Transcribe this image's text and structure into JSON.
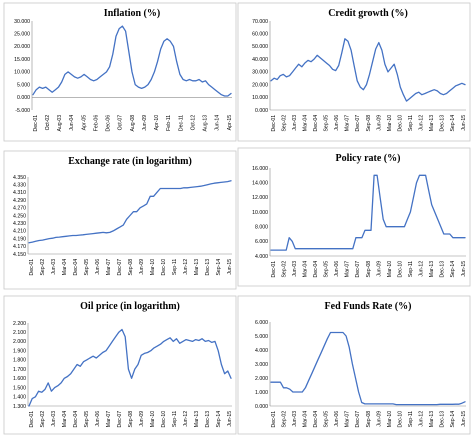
{
  "series_color": "#4472c4",
  "chart_data": [
    {
      "type": "line",
      "title": "Inflation (%)",
      "ylim": [
        -5,
        30
      ],
      "yticks": [
        "-5.000",
        "0.000",
        "5.000",
        "10.000",
        "15.000",
        "20.000",
        "25.000",
        "30.000"
      ],
      "xticks": [
        "Dec-01",
        "Oct-02",
        "Aug-03",
        "Jun-04",
        "Apr-05",
        "Feb-06",
        "Dec-06",
        "Oct-07",
        "Aug-08",
        "Jun-09",
        "Apr-10",
        "Feb-11",
        "Dec-11",
        "Oct-12",
        "Aug-13",
        "Jun-14",
        "Apr-15"
      ],
      "series": [
        {
          "values": [
            1,
            3,
            4,
            3.5,
            4,
            3,
            2,
            3,
            4,
            6,
            9,
            10,
            9,
            8,
            7.5,
            8,
            9,
            8,
            7,
            6.5,
            7,
            8,
            9,
            10,
            12,
            17,
            24,
            27,
            28,
            26,
            18,
            10,
            5,
            4,
            3.5,
            4,
            5,
            7,
            10,
            14,
            19,
            22,
            23,
            22,
            20,
            14,
            9,
            7,
            6.5,
            7,
            6.5,
            6.5,
            7,
            6,
            6.5,
            5,
            4,
            3,
            2,
            1,
            0.5,
            0.5,
            1.5
          ]
        }
      ]
    },
    {
      "type": "line",
      "title": "Credit growth (%)",
      "ylim": [
        0,
        70
      ],
      "yticks": [
        "0.000",
        "10.000",
        "20.000",
        "30.000",
        "40.000",
        "50.000",
        "60.000",
        "70.000"
      ],
      "xticks": [
        "Dec-01",
        "Sep-02",
        "Jun-03",
        "Mar-04",
        "Dec-04",
        "Sep-05",
        "Jun-06",
        "Mar-07",
        "Dec-07",
        "Sep-08",
        "Jun-09",
        "Mar-10",
        "Dec-10",
        "Sep-11",
        "Jun-12",
        "Mar-13",
        "Dec-13",
        "Sep-14",
        "Jun-15"
      ],
      "series": [
        {
          "values": [
            23,
            25,
            24,
            27,
            28,
            26,
            27,
            30,
            33,
            36,
            34,
            37,
            39,
            38,
            40,
            43,
            41,
            39,
            37,
            35,
            32,
            31,
            35,
            45,
            56,
            54,
            47,
            35,
            23,
            18,
            16,
            20,
            28,
            38,
            48,
            53,
            47,
            36,
            30,
            33,
            36,
            28,
            18,
            12,
            7,
            9,
            11,
            13,
            14,
            12,
            13,
            14,
            15,
            16,
            15,
            13,
            12,
            13,
            15,
            17,
            19,
            20,
            21,
            20
          ]
        }
      ]
    },
    {
      "type": "line",
      "title": "Exchange rate (in logarithm)",
      "ylim": [
        4.15,
        4.35
      ],
      "yticks": [
        "4.150",
        "4.170",
        "4.190",
        "4.210",
        "4.230",
        "4.250",
        "4.270",
        "4.290",
        "4.310",
        "4.330",
        "4.350"
      ],
      "xticks": [
        "Dec-01",
        "Sep-02",
        "Jun-03",
        "Mar-04",
        "Dec-04",
        "Sep-05",
        "Jun-06",
        "Mar-07",
        "Dec-07",
        "Sep-08",
        "Jun-09",
        "Mar-10",
        "Dec-10",
        "Sep-11",
        "Jun-12",
        "Mar-13",
        "Dec-13",
        "Sep-14",
        "Jun-15"
      ],
      "series": [
        {
          "values": [
            4.179,
            4.181,
            4.183,
            4.185,
            4.186,
            4.188,
            4.19,
            4.191,
            4.193,
            4.194,
            4.195,
            4.196,
            4.197,
            4.198,
            4.198,
            4.199,
            4.2,
            4.201,
            4.202,
            4.203,
            4.204,
            4.205,
            4.206,
            4.205,
            4.206,
            4.21,
            4.215,
            4.22,
            4.225,
            4.24,
            4.25,
            4.26,
            4.26,
            4.27,
            4.275,
            4.28,
            4.3,
            4.3,
            4.31,
            4.32,
            4.32,
            4.32,
            4.32,
            4.32,
            4.32,
            4.32,
            4.322,
            4.322,
            4.323,
            4.324,
            4.325,
            4.326,
            4.328,
            4.33,
            4.332,
            4.334,
            4.335,
            4.336,
            4.337,
            4.338,
            4.34
          ]
        }
      ]
    },
    {
      "type": "line",
      "title": "Policy rate (%)",
      "ylim": [
        4,
        16
      ],
      "yticks": [
        "4.000",
        "6.000",
        "8.000",
        "10.000",
        "12.000",
        "14.000",
        "16.000"
      ],
      "xticks": [
        "Dec-01",
        "Sep-02",
        "Jun-03",
        "Mar-04",
        "Dec-04",
        "Sep-05",
        "Jun-06",
        "Mar-07",
        "Dec-07",
        "Sep-08",
        "Jun-09",
        "Mar-10",
        "Dec-10",
        "Sep-11",
        "Jun-12",
        "Mar-13",
        "Dec-13",
        "Sep-14",
        "Jun-15"
      ],
      "series": [
        {
          "values": [
            4.8,
            4.8,
            4.8,
            4.8,
            4.8,
            4.8,
            6.5,
            6,
            5,
            5,
            5,
            5,
            5,
            5,
            5,
            5,
            5,
            5,
            5,
            5,
            5,
            5,
            5,
            5,
            5,
            5,
            5,
            5,
            6.5,
            6.5,
            6.5,
            7.5,
            7.5,
            7.5,
            15,
            15,
            12,
            9,
            8,
            8,
            8,
            8,
            8,
            8,
            8,
            9,
            10,
            12,
            14,
            15,
            15,
            15,
            13,
            11,
            10,
            9,
            8,
            7,
            7,
            7,
            6.5,
            6.5,
            6.5,
            6.5,
            6.5
          ]
        }
      ]
    },
    {
      "type": "line",
      "title": "Oil price (in logarithm)",
      "ylim": [
        1.3,
        2.2
      ],
      "yticks": [
        "1.300",
        "1.400",
        "1.500",
        "1.600",
        "1.700",
        "1.800",
        "1.900",
        "2.000",
        "2.100",
        "2.200"
      ],
      "xticks": [
        "Dec-01",
        "Sep-02",
        "Jun-03",
        "Mar-04",
        "Dec-04",
        "Sep-05",
        "Jun-06",
        "Mar-07",
        "Dec-07",
        "Sep-08",
        "Jun-09",
        "Mar-10",
        "Dec-10",
        "Sep-11",
        "Jun-12",
        "Mar-13",
        "Dec-13",
        "Sep-14",
        "Jun-15"
      ],
      "series": [
        {
          "values": [
            1.3,
            1.38,
            1.4,
            1.46,
            1.45,
            1.48,
            1.55,
            1.46,
            1.5,
            1.52,
            1.55,
            1.6,
            1.62,
            1.65,
            1.7,
            1.75,
            1.73,
            1.78,
            1.8,
            1.82,
            1.84,
            1.82,
            1.85,
            1.88,
            1.9,
            1.95,
            2.0,
            2.05,
            2.1,
            2.13,
            2.05,
            1.7,
            1.6,
            1.7,
            1.75,
            1.85,
            1.87,
            1.88,
            1.9,
            1.93,
            1.95,
            1.97,
            2.0,
            2.02,
            2.04,
            2.0,
            2.03,
            1.98,
            2.0,
            2.02,
            2.01,
            2.0,
            2.02,
            2.01,
            2.03,
            2.0,
            2.01,
            1.99,
            2.0,
            1.9,
            1.75,
            1.65,
            1.68,
            1.6
          ]
        }
      ]
    },
    {
      "type": "line",
      "title": "Fed Funds Rate (%)",
      "ylim": [
        0,
        6
      ],
      "yticks": [
        "0.000",
        "1.000",
        "2.000",
        "3.000",
        "4.000",
        "5.000",
        "6.000"
      ],
      "xticks": [
        "Dec-01",
        "Sep-02",
        "Jun-03",
        "Mar-04",
        "Dec-04",
        "Sep-05",
        "Jun-06",
        "Mar-07",
        "Dec-07",
        "Sep-08",
        "Jun-09",
        "Mar-10",
        "Dec-10",
        "Sep-11",
        "Jun-12",
        "Mar-13",
        "Dec-13",
        "Sep-14",
        "Jun-15"
      ],
      "series": [
        {
          "values": [
            1.7,
            1.7,
            1.7,
            1.7,
            1.3,
            1.3,
            1.2,
            1.0,
            1.0,
            1.0,
            1.0,
            1.3,
            1.8,
            2.3,
            2.8,
            3.3,
            3.8,
            4.3,
            4.8,
            5.25,
            5.25,
            5.25,
            5.25,
            5.25,
            5.0,
            4.2,
            3.0,
            2.0,
            1.0,
            0.25,
            0.15,
            0.15,
            0.15,
            0.15,
            0.15,
            0.15,
            0.15,
            0.15,
            0.15,
            0.15,
            0.1,
            0.1,
            0.1,
            0.1,
            0.1,
            0.1,
            0.1,
            0.1,
            0.1,
            0.1,
            0.1,
            0.1,
            0.1,
            0.1,
            0.12,
            0.12,
            0.12,
            0.12,
            0.12,
            0.13,
            0.13,
            0.2,
            0.3
          ]
        }
      ]
    }
  ]
}
